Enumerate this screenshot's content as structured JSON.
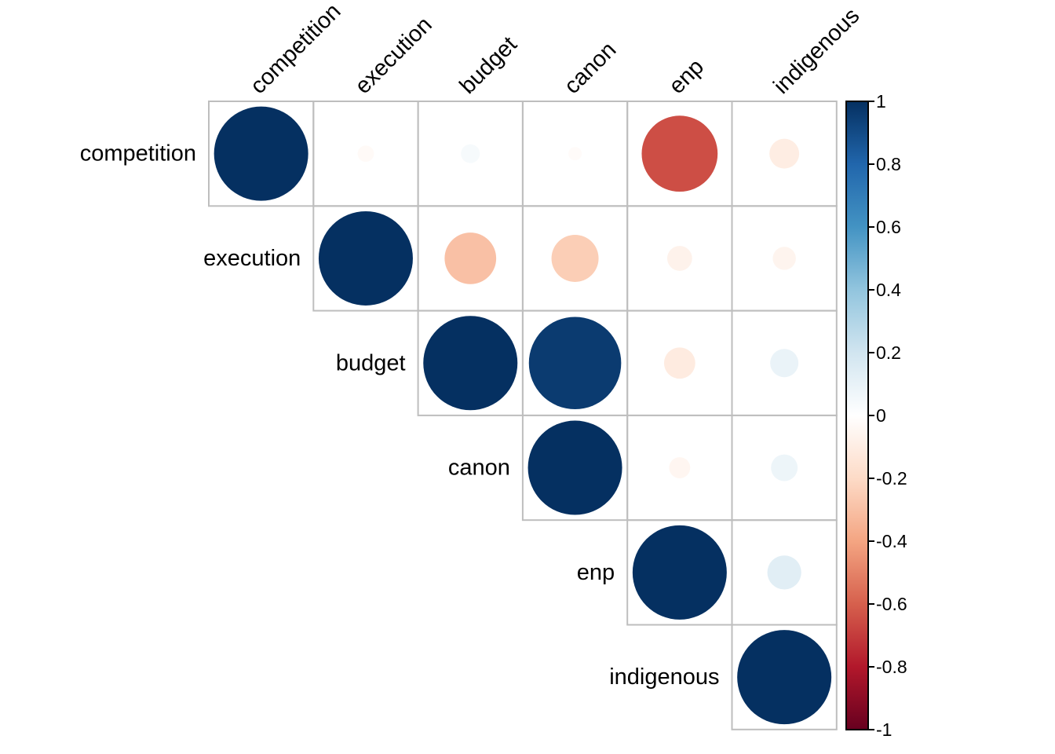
{
  "chart_data": {
    "type": "heatmap",
    "variables": [
      "competition",
      "execution",
      "budget",
      "canon",
      "enp",
      "indigenous"
    ],
    "matrix": [
      [
        1.0,
        -0.03,
        0.04,
        -0.02,
        -0.65,
        -0.1
      ],
      [
        -0.03,
        1.0,
        -0.3,
        -0.25,
        -0.07,
        -0.06
      ],
      [
        0.04,
        -0.3,
        1.0,
        0.96,
        -0.11,
        0.09
      ],
      [
        -0.02,
        -0.25,
        0.96,
        1.0,
        -0.05,
        0.08
      ],
      [
        -0.65,
        -0.07,
        -0.11,
        -0.05,
        1.0,
        0.13
      ],
      [
        -0.1,
        -0.06,
        0.09,
        0.08,
        0.13,
        1.0
      ]
    ],
    "layout": "upper-triangle",
    "mark": "circle",
    "legend": {
      "position": "right",
      "range": [
        -1,
        1
      ],
      "ticks": [
        "1",
        "0.8",
        "0.6",
        "0.4",
        "0.2",
        "0",
        "-0.2",
        "-0.4",
        "-0.6",
        "-0.8",
        "-1"
      ],
      "tick_values": [
        1,
        0.8,
        0.6,
        0.4,
        0.2,
        0,
        -0.2,
        -0.4,
        -0.6,
        -0.8,
        -1
      ]
    },
    "colorscale": [
      "#67001f",
      "#b2182b",
      "#d6604d",
      "#f4a582",
      "#fddbc7",
      "#ffffff",
      "#d1e5f0",
      "#92c5de",
      "#4393c3",
      "#2166ac",
      "#053061"
    ],
    "grid": true,
    "title": ""
  }
}
